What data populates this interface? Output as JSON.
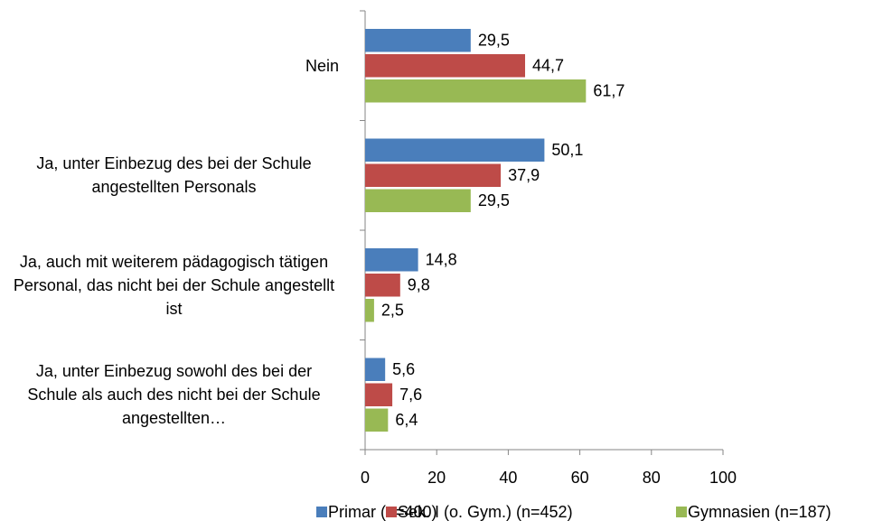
{
  "chart_data": {
    "type": "hbar",
    "categories": [
      "Nein",
      "Ja, unter Einbezug des bei der Schule angestellten Personals",
      "Ja, auch mit weiterem pädagogisch tätigen Personal, das nicht bei der Schule angestellt ist",
      "Ja, unter Einbezug sowohl des bei der Schule als auch des nicht bei der Schule angestellten…"
    ],
    "series": [
      {
        "name": "Primar (n=400)",
        "color": "#4a7ebb",
        "values": [
          29.5,
          50.1,
          14.8,
          5.6
        ],
        "value_labels": [
          "29,5",
          "50,1",
          "14,8",
          "5,6"
        ]
      },
      {
        "name": "Sek. I (o. Gym.) (n=452)",
        "color": "#be4b48",
        "values": [
          44.7,
          37.9,
          9.8,
          7.6
        ],
        "value_labels": [
          "44,7",
          "37,9",
          "9,8",
          "7,6"
        ]
      },
      {
        "name": "Gymnasien (n=187)",
        "color": "#98b954",
        "values": [
          61.7,
          29.5,
          2.5,
          6.4
        ],
        "value_labels": [
          "61,7",
          "29,5",
          "2,5",
          "6,4"
        ]
      }
    ],
    "xlim": [
      0,
      100
    ],
    "xticks": [
      0,
      20,
      40,
      60,
      80,
      100
    ],
    "legend": "bottom"
  }
}
